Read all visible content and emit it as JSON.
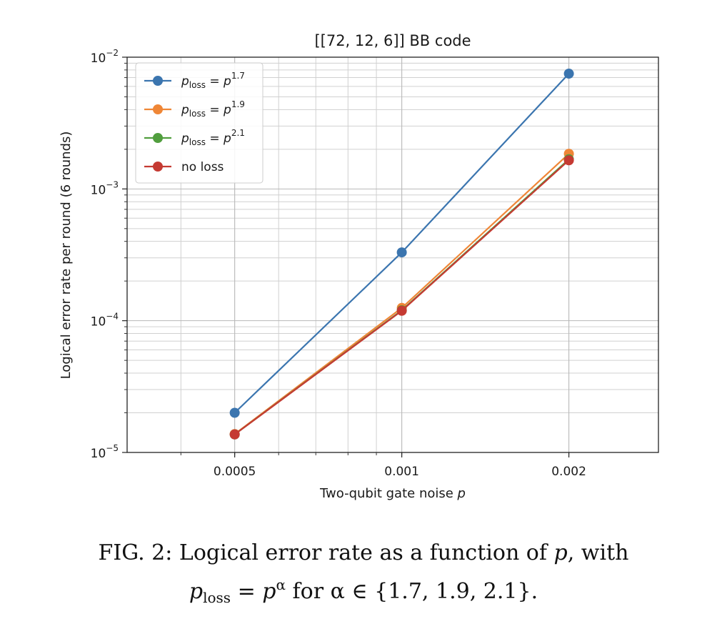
{
  "chart_data": {
    "type": "line",
    "title": "[[72, 12, 6]] BB code",
    "xlabel": "Two-qubit gate noise p",
    "ylabel": "Logical error rate per round (6 rounds)",
    "xscale": "log",
    "yscale": "log",
    "x": [
      0.0005,
      0.001,
      0.002
    ],
    "xlim": [
      0.00032,
      0.0029
    ],
    "ylim": [
      1e-05,
      0.01
    ],
    "xticks": [
      "0.0005",
      "0.001",
      "0.002"
    ],
    "yticks": [
      {
        "base": "10",
        "exp": "−5"
      },
      {
        "base": "10",
        "exp": "−4"
      },
      {
        "base": "10",
        "exp": "−3"
      },
      {
        "base": "10",
        "exp": "−2"
      }
    ],
    "grid": true,
    "legend_position": "top-left",
    "series": [
      {
        "name": "p_loss = p^1.7",
        "legend_base": "p",
        "legend_sub": "loss",
        "legend_eq": "= p",
        "legend_exp": "1.7",
        "color": "#3b75af",
        "values": [
          2e-05,
          0.00033,
          0.0075
        ]
      },
      {
        "name": "p_loss = p^1.9",
        "legend_base": "p",
        "legend_sub": "loss",
        "legend_eq": "= p",
        "legend_exp": "1.9",
        "color": "#ef8636",
        "values": [
          1.38e-05,
          0.000125,
          0.00185
        ]
      },
      {
        "name": "p_loss = p^2.1",
        "legend_base": "p",
        "legend_sub": "loss",
        "legend_eq": "= p",
        "legend_exp": "2.1",
        "color": "#519e3e",
        "values": [
          1.37e-05,
          0.00012,
          0.00168
        ]
      },
      {
        "name": "no loss",
        "legend_text": "no loss",
        "color": "#c53a32",
        "values": [
          1.37e-05,
          0.000119,
          0.00165
        ]
      }
    ]
  },
  "caption": {
    "fig_label": "FIG. 2: Logical error rate as a function of",
    "var_p": "p",
    "line1_end": ", with",
    "p_loss_base": "p",
    "p_loss_sub": "loss",
    "eq": " = ",
    "p_alpha_base": "p",
    "alpha": "α",
    "for_text": " for ",
    "set_text": "α ∈ {1.7, 1.9, 2.1}."
  }
}
